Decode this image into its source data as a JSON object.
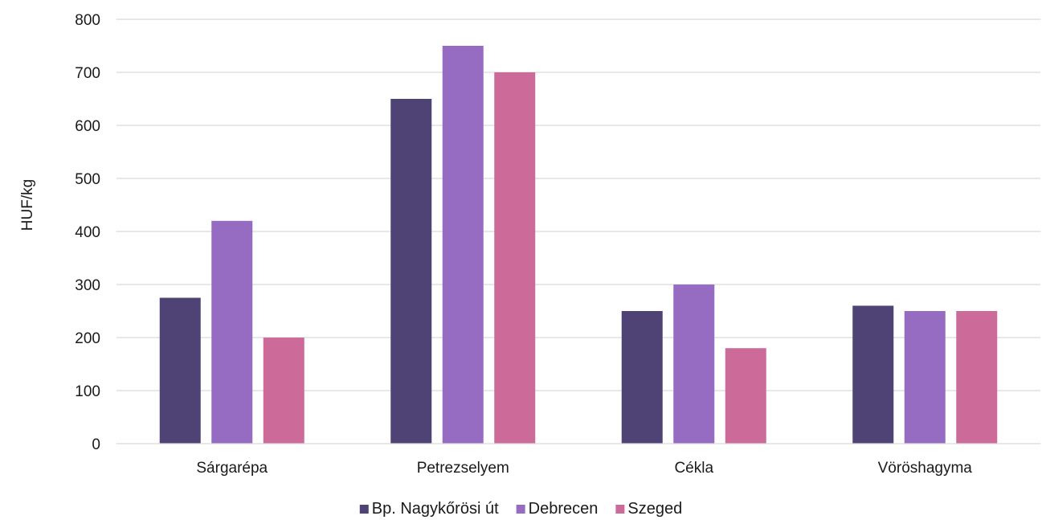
{
  "chart_data": {
    "type": "bar",
    "title": "",
    "xlabel": "",
    "ylabel": "HUF/kg",
    "ylim": [
      0,
      800
    ],
    "yticks": [
      0,
      100,
      200,
      300,
      400,
      500,
      600,
      700,
      800
    ],
    "grid": true,
    "legend_position": "bottom",
    "categories": [
      "Sárgarépa",
      "Petrezselyem",
      "Cékla",
      "Vöröshagyma"
    ],
    "series": [
      {
        "name": "Bp. Nagykőrösi út",
        "color": "#4e4374",
        "values": [
          275,
          650,
          250,
          260
        ]
      },
      {
        "name": "Debrecen",
        "color": "#966cc3",
        "values": [
          420,
          750,
          300,
          250
        ]
      },
      {
        "name": "Szeged",
        "color": "#cc6b9a",
        "values": [
          200,
          700,
          180,
          250
        ]
      }
    ]
  }
}
